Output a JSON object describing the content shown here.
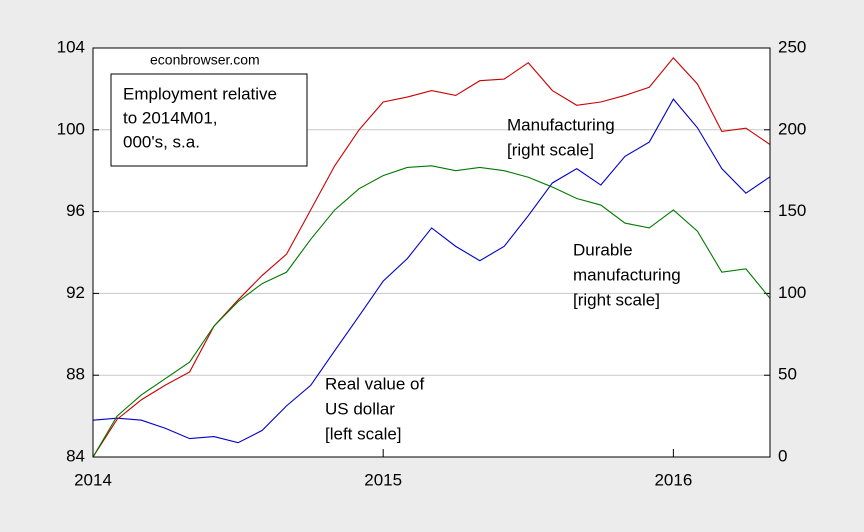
{
  "chart_data": {
    "type": "line",
    "source": "econbrowser.com",
    "note": [
      "Employment relative",
      "to 2014M01,",
      "000's, s.a."
    ],
    "x": [
      2014,
      2014.083,
      2014.167,
      2014.25,
      2014.333,
      2014.417,
      2014.5,
      2014.583,
      2014.667,
      2014.75,
      2014.833,
      2014.917,
      2015,
      2015.083,
      2015.167,
      2015.25,
      2015.333,
      2015.417,
      2015.5,
      2015.583,
      2015.667,
      2015.75,
      2015.833,
      2015.917,
      2016,
      2016.083,
      2016.167,
      2016.25,
      2016.333
    ],
    "xlim": [
      2014,
      2016.333
    ],
    "xticks": [
      2014,
      2015,
      2016
    ],
    "ylim": [
      84,
      104
    ],
    "yticks": [
      84,
      88,
      92,
      96,
      100,
      104
    ],
    "y2lim": [
      0,
      250
    ],
    "y2ticks": [
      0,
      50,
      100,
      150,
      200,
      250
    ],
    "grid": true,
    "series": [
      {
        "color": "#0000cc",
        "axis": "y",
        "label": [
          "Real value of",
          "US dollar",
          "[left scale]"
        ],
        "values": [
          85.8,
          85.9,
          85.8,
          85.4,
          84.9,
          85.0,
          84.7,
          85.3,
          86.5,
          87.5,
          89.2,
          90.9,
          92.6,
          93.7,
          95.2,
          94.3,
          93.6,
          94.3,
          95.8,
          97.4,
          98.1,
          97.3,
          98.7,
          99.4,
          101.5,
          100.1,
          98.1,
          96.9,
          97.7
        ]
      },
      {
        "color": "#cc0000",
        "axis": "y2",
        "label": [
          "Manufacturing",
          "[right scale]"
        ],
        "values": [
          0,
          23,
          35,
          44,
          52,
          80,
          96,
          111,
          124,
          151,
          178,
          200,
          217,
          220,
          224,
          221,
          230,
          231,
          241,
          224,
          215,
          217,
          221,
          226,
          244,
          228,
          199,
          201,
          191
        ]
      },
      {
        "color": "#007a00",
        "axis": "y2",
        "label": [
          "Durable",
          "manufacturing",
          "[right scale]"
        ],
        "values": [
          0,
          25,
          38,
          48,
          58,
          80,
          95,
          106,
          113,
          133,
          151,
          164,
          172,
          177,
          178,
          175,
          177,
          175,
          171,
          165,
          158,
          154,
          143,
          140,
          151,
          138,
          113,
          115,
          97
        ]
      }
    ]
  }
}
